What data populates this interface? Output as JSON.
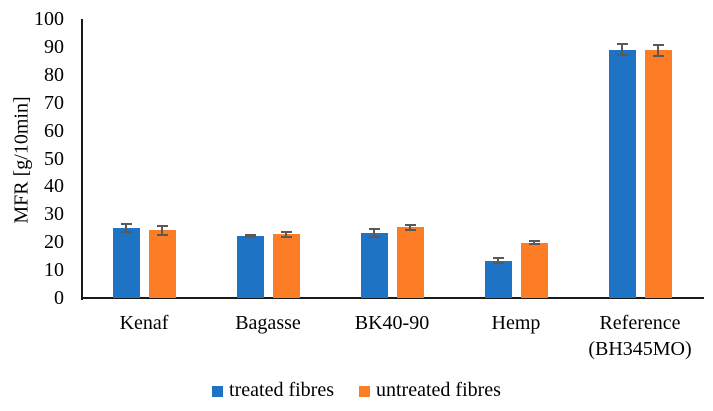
{
  "chart_data": {
    "type": "bar",
    "title": "",
    "xlabel": "",
    "ylabel": "MFR [g/10min]",
    "ylim": [
      0,
      100
    ],
    "ytick_step": 10,
    "grid": false,
    "legend_position": "bottom",
    "axis_color": "#1a1a1a",
    "error_bar_color": "#595959",
    "categories": [
      "Kenaf",
      "Bagasse",
      "BK40-90",
      "Hemp",
      "Reference (BH345MO)"
    ],
    "series": [
      {
        "name": "treated fibres",
        "color": "#1e73c4",
        "values": [
          25.2,
          22.2,
          23.4,
          13.3,
          89.0
        ],
        "errors": [
          1.5,
          0.5,
          1.5,
          0.9,
          2.0
        ]
      },
      {
        "name": "untreated fibres",
        "color": "#fc7d26",
        "values": [
          24.2,
          22.8,
          25.3,
          19.8,
          88.8
        ],
        "errors": [
          1.5,
          0.8,
          1.0,
          0.6,
          2.0
        ]
      }
    ]
  },
  "legend": {
    "items": [
      {
        "label": "treated fibres"
      },
      {
        "label": "untreated fibres"
      }
    ]
  }
}
